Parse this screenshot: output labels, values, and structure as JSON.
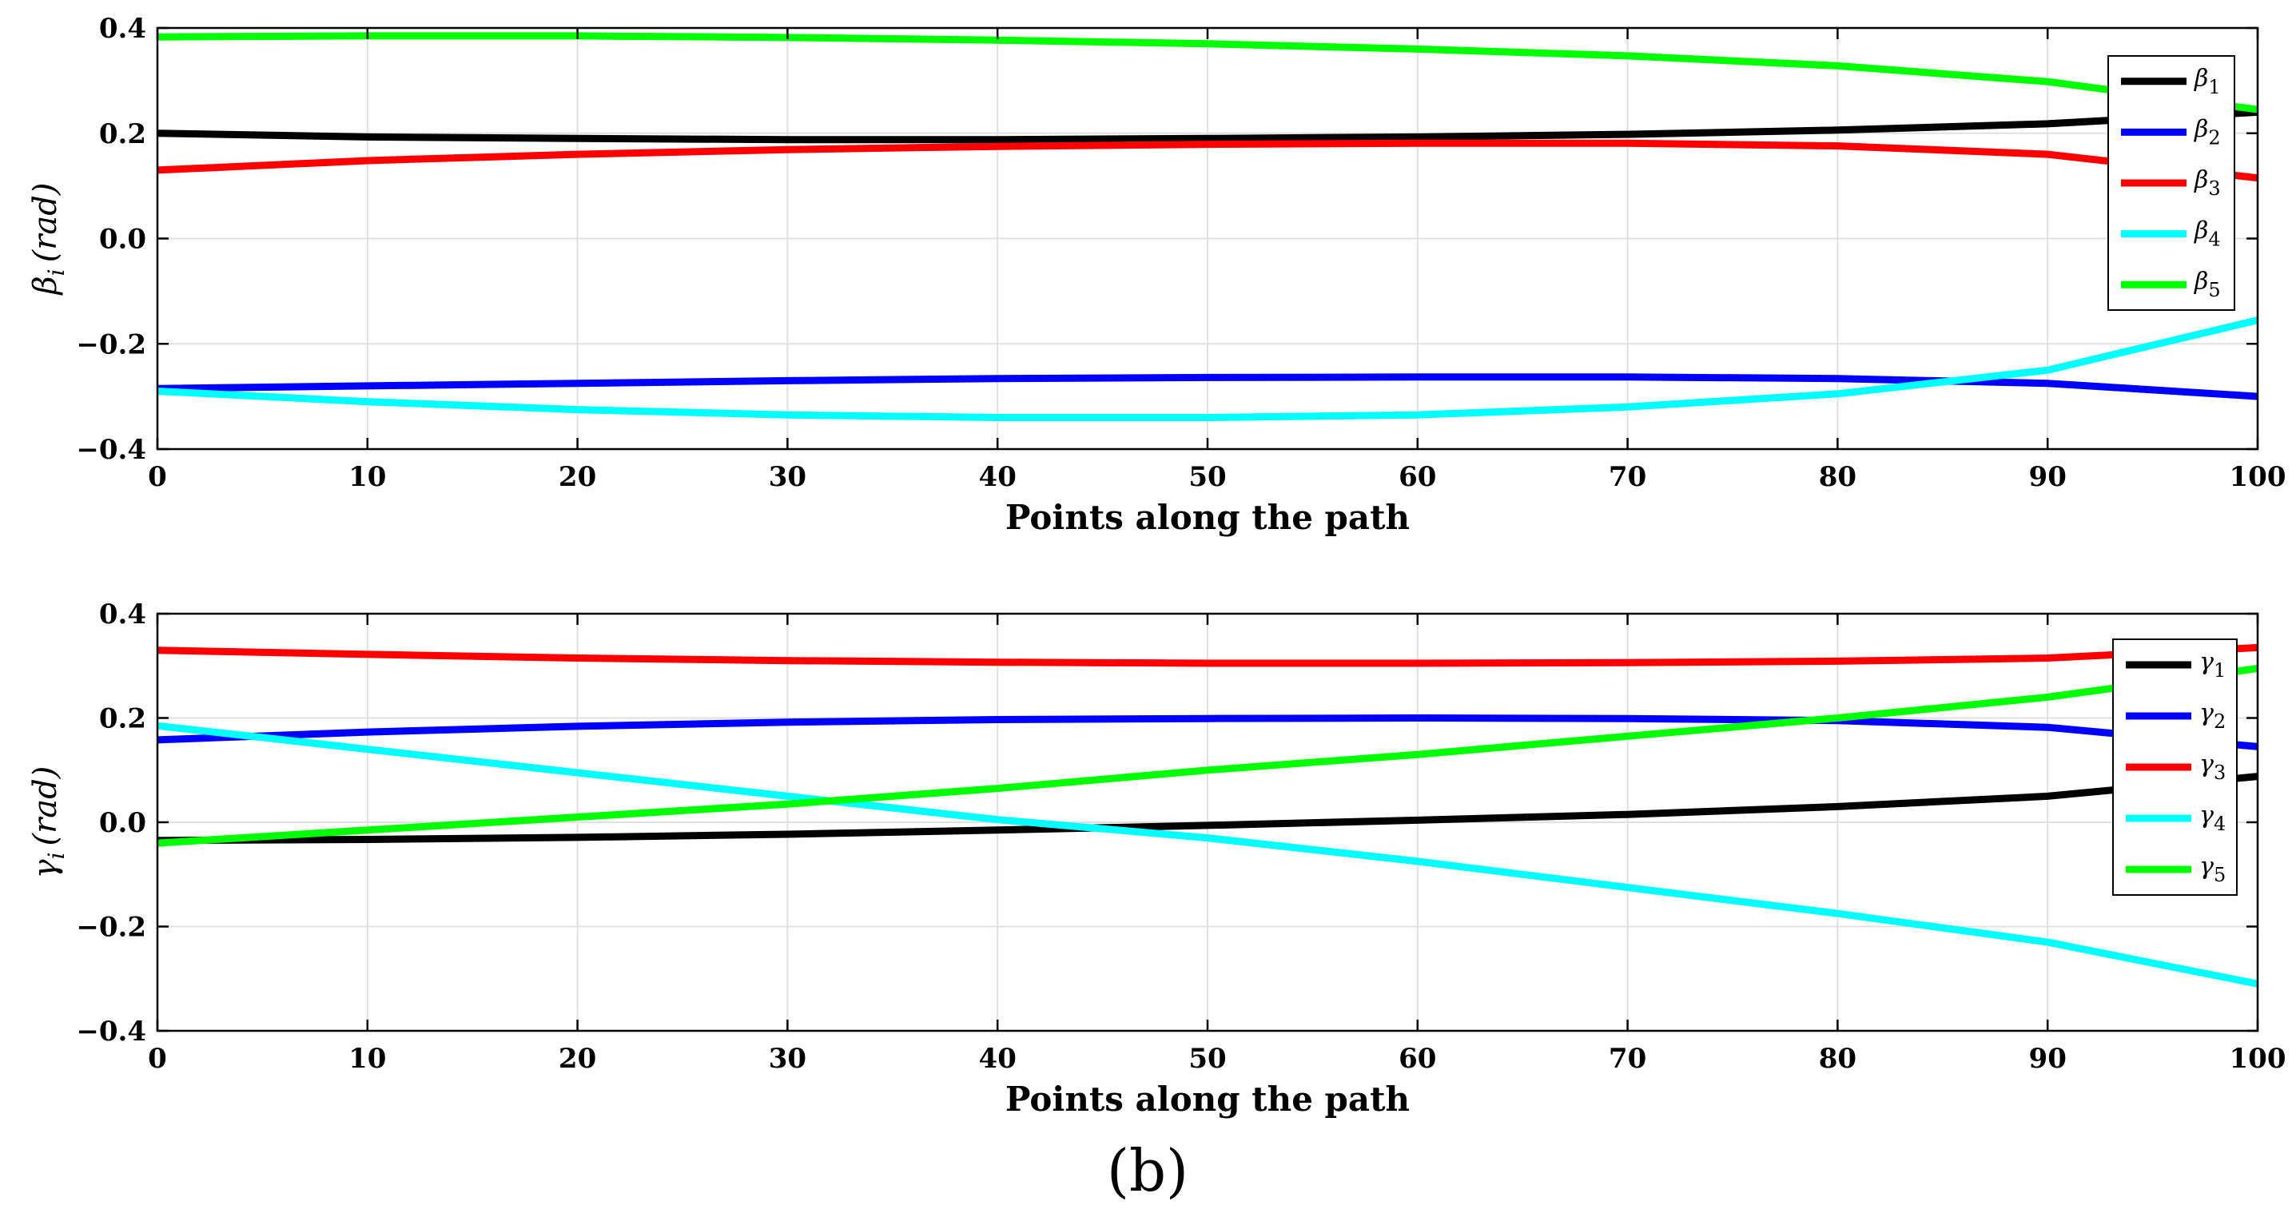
{
  "figure": {
    "caption": "(b)"
  },
  "chart_data": [
    {
      "type": "line",
      "title": "",
      "xlabel": "Points along the path",
      "ylabel_symbol": "β",
      "ylabel_sub": "i",
      "ylabel_unit": "(rad)",
      "xlim": [
        0,
        100
      ],
      "ylim": [
        -0.4,
        0.4
      ],
      "xticks": [
        0,
        10,
        20,
        30,
        40,
        50,
        60,
        70,
        80,
        90,
        100
      ],
      "xtick_labels": [
        "0",
        "10",
        "20",
        "30",
        "40",
        "50",
        "60",
        "70",
        "80",
        "90",
        "100"
      ],
      "yticks": [
        0.4,
        0.2,
        0.0,
        -0.2,
        -0.4
      ],
      "ytick_labels": [
        "0.4",
        "0.2",
        "0.0",
        "−0.2",
        "−0.4"
      ],
      "grid": true,
      "legend_position": "top-right",
      "x": [
        0,
        10,
        20,
        30,
        40,
        50,
        60,
        70,
        80,
        90,
        100
      ],
      "series": [
        {
          "name": "β",
          "sub": "1",
          "color": "#000000",
          "values": [
            0.2,
            0.193,
            0.19,
            0.188,
            0.188,
            0.19,
            0.193,
            0.198,
            0.206,
            0.218,
            0.24
          ]
        },
        {
          "name": "β",
          "sub": "2",
          "color": "#0000ff",
          "values": [
            -0.285,
            -0.28,
            -0.275,
            -0.27,
            -0.266,
            -0.264,
            -0.263,
            -0.263,
            -0.266,
            -0.275,
            -0.3
          ]
        },
        {
          "name": "β",
          "sub": "3",
          "color": "#ff0000",
          "values": [
            0.13,
            0.148,
            0.16,
            0.169,
            0.175,
            0.179,
            0.181,
            0.181,
            0.176,
            0.16,
            0.115
          ]
        },
        {
          "name": "β",
          "sub": "4",
          "color": "#00ffff",
          "values": [
            -0.29,
            -0.31,
            -0.325,
            -0.335,
            -0.34,
            -0.34,
            -0.335,
            -0.32,
            -0.295,
            -0.25,
            -0.155
          ]
        },
        {
          "name": "β",
          "sub": "5",
          "color": "#00ff00",
          "values": [
            0.383,
            0.385,
            0.385,
            0.382,
            0.377,
            0.37,
            0.36,
            0.347,
            0.328,
            0.298,
            0.245
          ]
        }
      ]
    },
    {
      "type": "line",
      "title": "",
      "xlabel": "Points along the path",
      "ylabel_symbol": "γ",
      "ylabel_sub": "i",
      "ylabel_unit": "(rad)",
      "xlim": [
        0,
        100
      ],
      "ylim": [
        -0.4,
        0.4
      ],
      "xticks": [
        0,
        10,
        20,
        30,
        40,
        50,
        60,
        70,
        80,
        90,
        100
      ],
      "xtick_labels": [
        "0",
        "10",
        "20",
        "30",
        "40",
        "50",
        "60",
        "70",
        "80",
        "90",
        "100"
      ],
      "yticks": [
        0.4,
        0.2,
        0.0,
        -0.2,
        -0.4
      ],
      "ytick_labels": [
        "0.4",
        "0.2",
        "0.0",
        "−0.2",
        "−0.4"
      ],
      "grid": true,
      "legend_position": "top-right",
      "x": [
        0,
        10,
        20,
        30,
        40,
        50,
        60,
        70,
        80,
        90,
        100
      ],
      "series": [
        {
          "name": "γ",
          "sub": "1",
          "color": "#000000",
          "values": [
            -0.035,
            -0.033,
            -0.029,
            -0.023,
            -0.015,
            -0.006,
            0.004,
            0.015,
            0.03,
            0.05,
            0.088
          ]
        },
        {
          "name": "γ",
          "sub": "2",
          "color": "#0000ff",
          "values": [
            0.158,
            0.173,
            0.184,
            0.192,
            0.197,
            0.199,
            0.2,
            0.199,
            0.195,
            0.182,
            0.145
          ]
        },
        {
          "name": "γ",
          "sub": "3",
          "color": "#ff0000",
          "values": [
            0.33,
            0.322,
            0.315,
            0.31,
            0.307,
            0.305,
            0.305,
            0.306,
            0.309,
            0.315,
            0.335
          ]
        },
        {
          "name": "γ",
          "sub": "4",
          "color": "#00ffff",
          "values": [
            0.185,
            0.14,
            0.095,
            0.05,
            0.005,
            -0.03,
            -0.075,
            -0.125,
            -0.175,
            -0.23,
            -0.31
          ]
        },
        {
          "name": "γ",
          "sub": "5",
          "color": "#00ff00",
          "values": [
            -0.04,
            -0.015,
            0.01,
            0.035,
            0.065,
            0.1,
            0.13,
            0.165,
            0.2,
            0.24,
            0.295
          ]
        }
      ]
    }
  ]
}
